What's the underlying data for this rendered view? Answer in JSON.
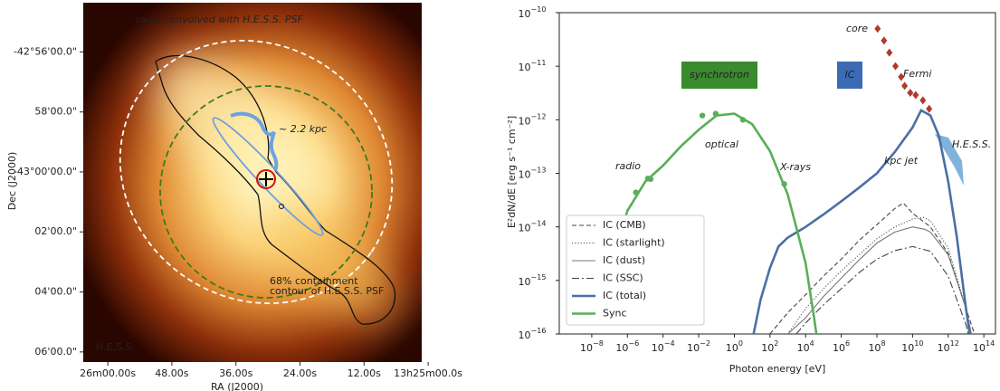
{
  "chart_data": [
    {
      "type": "map",
      "xlabel": "RA (J2000)",
      "ylabel": "Dec (J2000)",
      "xlim": [
        48364.6,
        48301.2
      ],
      "ylim": [
        -42.906,
        -43.1056
      ],
      "xticks": [
        {
          "value": 48360,
          "label": "26m00.00s"
        },
        {
          "value": 48348,
          "label": "48.00s"
        },
        {
          "value": 48336,
          "label": "36.00s"
        },
        {
          "value": 48324,
          "label": "24.00s"
        },
        {
          "value": 48312,
          "label": "12.00s"
        },
        {
          "value": 48300,
          "label": "13h25m00.0s"
        }
      ],
      "yticks": [
        {
          "value": -42.9333,
          "label": "-42°56'00.0\""
        },
        {
          "value": -42.9667,
          "label": "58'00.0\""
        },
        {
          "value": -43,
          "label": "-43°00'00.0\""
        },
        {
          "value": -43.0333,
          "label": "02'00.0\""
        },
        {
          "value": -43.0667,
          "label": "04'00.0\""
        },
        {
          "value": -43.1,
          "label": "06'00.0\""
        }
      ],
      "annotations": [
        "radio convolved with H.E.S.S. PSF",
        "~ 2.2 kpc",
        "68% containment",
        "contour of H.E.S.S. PSF",
        "H.E.S.S."
      ]
    },
    {
      "type": "line",
      "log_x": true,
      "log_y": true,
      "xlabel": "Photon energy [eV]",
      "ylabel": "E²dN/dE [erg s⁻¹ cm⁻²]",
      "xlim": [
        1.5e-10,
        450000000000000.0
      ],
      "ylim": [
        1e-16,
        1e-10
      ],
      "xticks": [
        {
          "value": 1e-08,
          "label": "10−8"
        },
        {
          "value": 1e-06,
          "label": "10−6"
        },
        {
          "value": 0.0001,
          "label": "10−4"
        },
        {
          "value": 0.01,
          "label": "10−2"
        },
        {
          "value": 1,
          "label": "100"
        },
        {
          "value": 100,
          "label": "102"
        },
        {
          "value": 10000,
          "label": "104"
        },
        {
          "value": 1000000.0,
          "label": "106"
        },
        {
          "value": 100000000.0,
          "label": "108"
        },
        {
          "value": 10000000000.0,
          "label": "1010"
        },
        {
          "value": 1000000000000.0,
          "label": "1012"
        },
        {
          "value": 100000000000000.0,
          "label": "1014"
        }
      ],
      "yticks": [
        {
          "value": 1e-16,
          "label": "10−16"
        },
        {
          "value": 1e-15,
          "label": "10−15"
        },
        {
          "value": 1e-14,
          "label": "10−14"
        },
        {
          "value": 1e-13,
          "label": "10−13"
        },
        {
          "value": 1e-12,
          "label": "10−12"
        },
        {
          "value": 1e-11,
          "label": "10−11"
        },
        {
          "value": 1e-10,
          "label": "10−10"
        }
      ],
      "legend": "lower left",
      "series": [
        {
          "name": "IC (CMB)",
          "color": "#444444",
          "style": "dashed",
          "x": [
            100,
            1000,
            10000,
            100000,
            1000000.0,
            10000000.0,
            100000000.0,
            1000000000.0,
            3000000000.0,
            10000000000.0,
            100000000000.0,
            1000000000000.0,
            10000000000000.0,
            30000000000000.0
          ],
          "values": [
            1e-16,
            2.5e-16,
            5.4e-16,
            1.2e-15,
            2.5e-15,
            5.6e-15,
            1.1e-14,
            2.2e-14,
            2.8e-14,
            1.8e-14,
            1e-14,
            3.2e-15,
            3e-16,
            1e-16
          ]
        },
        {
          "name": "IC (starlight)",
          "color": "#555555",
          "style": "dotted",
          "x": [
            1000,
            10000,
            100000,
            1000000.0,
            10000000.0,
            100000000.0,
            1000000000.0,
            10000000000.0,
            40000000000.0,
            100000000000.0,
            1000000000000.0,
            10000000000000.0,
            20000000000000.0
          ],
          "values": [
            1e-16,
            3e-16,
            7e-16,
            1.5e-15,
            3e-15,
            6e-15,
            1e-14,
            1.4e-14,
            1.5e-14,
            1.3e-14,
            4e-15,
            3e-16,
            1e-16
          ]
        },
        {
          "name": "IC (dust)",
          "color": "#777777",
          "style": "solid",
          "x": [
            1000,
            10000,
            100000,
            1000000.0,
            10000000.0,
            100000000.0,
            1000000000.0,
            10000000000.0,
            50000000000.0,
            100000000000.0,
            1000000000000.0,
            10000000000000.0,
            20000000000000.0
          ],
          "values": [
            1e-16,
            2e-16,
            5e-16,
            1.1e-15,
            2.4e-15,
            5e-15,
            8e-15,
            1e-14,
            9e-15,
            8e-15,
            3e-15,
            3e-16,
            1e-16
          ]
        },
        {
          "name": "IC (SSC)",
          "color": "#444444",
          "style": "dashdot",
          "x": [
            3000,
            10000,
            100000,
            1000000.0,
            10000000.0,
            100000000.0,
            1000000000.0,
            10000000000.0,
            100000000000.0,
            1000000000000.0,
            10000000000000.0,
            13000000000000.0
          ],
          "values": [
            1e-16,
            1.6e-16,
            3.5e-16,
            7e-16,
            1.4e-15,
            2.5e-15,
            3.6e-15,
            4.3e-15,
            3.5e-15,
            1.2e-15,
            1.5e-16,
            1e-16
          ]
        },
        {
          "name": "IC (total)",
          "color": "#4a6fa5",
          "style": "thick",
          "x": [
            12,
            30,
            100,
            300,
            1000,
            10000,
            100000,
            1000000.0,
            10000000.0,
            100000000.0,
            1000000000.0,
            10000000000.0,
            30000000000.0,
            100000000000.0,
            300000000000.0,
            1000000000000.0,
            3000000000000.0,
            10000000000000.0,
            16000000000000.0
          ],
          "values": [
            1e-16,
            4.4e-16,
            1.7e-15,
            4.3e-15,
            6.3e-15,
            1e-14,
            1.7e-14,
            3e-14,
            5.4e-14,
            1e-13,
            2.5e-13,
            7.2e-13,
            1.5e-12,
            1.2e-12,
            5e-13,
            7e-14,
            6.8e-15,
            3e-16,
            1e-16
          ]
        },
        {
          "name": "Sync",
          "color": "#5aad5a",
          "style": "thick",
          "x": [
            1e-08,
            1e-07,
            1e-06,
            1e-05,
            0.0001,
            0.001,
            0.01,
            0.1,
            1,
            10,
            100,
            1000,
            10000,
            30000,
            40000
          ],
          "values": [
            1.6e-16,
            1.7e-15,
            2e-14,
            7e-14,
            1.4e-13,
            3.2e-13,
            6.5e-13,
            1.2e-12,
            1.3e-12,
            8.3e-13,
            2.6e-13,
            4e-14,
            2.1e-15,
            2e-16,
            1e-16
          ]
        }
      ],
      "markers": [
        {
          "color": "#5aad5a",
          "shape": "circle",
          "x": [
            3e-06,
            1.4e-05,
            2e-05,
            0.016,
            0.09,
            3,
            630
          ],
          "values": [
            4.4e-14,
            8e-14,
            7.8e-14,
            1.2e-12,
            1.3e-12,
            1e-12,
            6.3e-14
          ]
        },
        {
          "color": "#b03a2e",
          "shape": "diamond",
          "x": [
            110000000.0,
            250000000.0,
            500000000.0,
            1100000000.0,
            2300000000.0,
            3600000000.0,
            7400000000.0,
            15000000000.0,
            38000000000.0,
            85000000000.0
          ],
          "values": [
            5e-11,
            3e-11,
            1.8e-11,
            1e-11,
            6.3e-12,
            4.3e-12,
            3.2e-12,
            2.9e-12,
            2.3e-12,
            1.6e-12
          ]
        }
      ],
      "annotations": [
        "synchrotron",
        "IC",
        "core",
        "Fermi",
        "H.E.S.S.",
        "kpc jet",
        "radio",
        "optical",
        "X-rays"
      ]
    }
  ]
}
